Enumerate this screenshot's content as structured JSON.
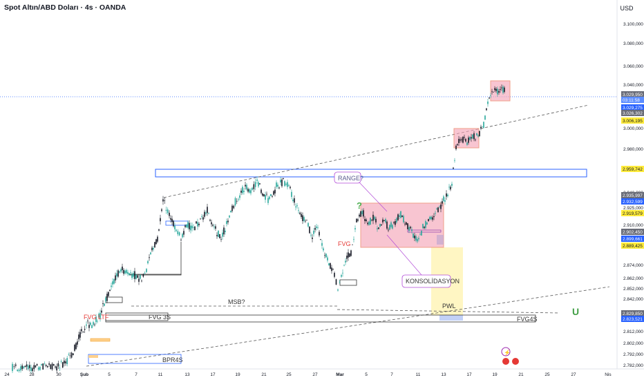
{
  "header": {
    "symbol_title": "Spot Altın/ABD Doları · 4s · OANDA",
    "currency": "USD"
  },
  "colors": {
    "up": "#26a69a",
    "down": "#131722",
    "zone_blue": "#1e63e0",
    "pink_fill": "#f5a0b4",
    "pink_stroke": "#e8613b",
    "yellow_fill": "#fff7c4",
    "label_yellow": "#ffeb3b",
    "label_blue": "#2962ff",
    "label_gray": "#6a6d78"
  },
  "chart_data": {
    "type": "candlestick",
    "ylim": [
      2789,
      3118
    ],
    "y_ticks": [
      "3.100,000",
      "3.080,000",
      "3.060,000",
      "3.040,000",
      "3.000,000",
      "2.980,000",
      "2.940,000",
      "2.925,000",
      "2.910,000",
      "2.874,000",
      "2.862,000",
      "2.852,000",
      "2.842,000",
      "2.812,000",
      "2.802,000",
      "2.792,000",
      "2.782,000"
    ],
    "x_ticks": [
      "24",
      "28",
      "30",
      "Şub",
      "5",
      "7",
      "11",
      "13",
      "17",
      "19",
      "21",
      "25",
      "27",
      "Mar",
      "5",
      "7",
      "11",
      "13",
      "17",
      "19",
      "21",
      "25",
      "27",
      "Nis"
    ],
    "price_labels": [
      {
        "text": "3.029,950",
        "kind": "gray"
      },
      {
        "text": "03:11:58",
        "kind": "blue-light"
      },
      {
        "text": "3.029,275",
        "kind": "blue"
      },
      {
        "text": "3.026,302",
        "kind": "gray"
      },
      {
        "text": "3.006,195",
        "kind": "yellow"
      },
      {
        "text": "2.959,742",
        "kind": "yellow"
      },
      {
        "text": "2.935,997",
        "kind": "gray"
      },
      {
        "text": "2.932,599",
        "kind": "blue"
      },
      {
        "text": "2.919,579",
        "kind": "yellow"
      },
      {
        "text": "2.902,450",
        "kind": "gray"
      },
      {
        "text": "2.899,661",
        "kind": "blue"
      },
      {
        "text": "2.889,425",
        "kind": "yellow"
      },
      {
        "text": "2.829,850",
        "kind": "gray"
      },
      {
        "text": "2.823,521",
        "kind": "blue"
      }
    ],
    "annotations": [
      "RANGE?",
      "KONSOLİDASYON",
      "MSB?",
      "FVG 3S",
      "FVG4S",
      "FVG",
      "FVG LTF",
      "PWL",
      "BPR4S",
      "?"
    ]
  }
}
